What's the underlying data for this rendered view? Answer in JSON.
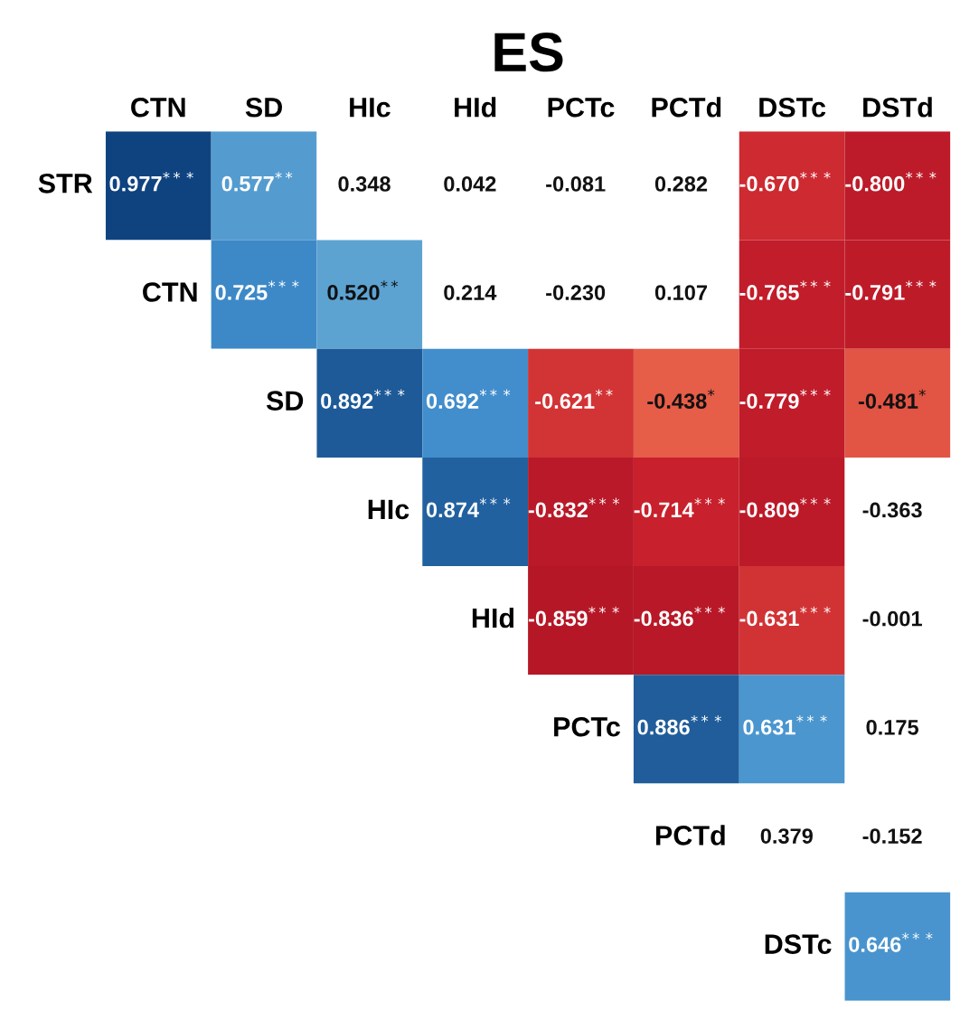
{
  "chart_data": {
    "type": "heatmap",
    "title": "ES",
    "categories": [
      "CTN",
      "SD",
      "HIc",
      "HId",
      "PCTc",
      "PCTd",
      "DSTc",
      "DSTd"
    ],
    "y_categories": [
      "STR",
      "CTN",
      "SD",
      "HIc",
      "HId",
      "PCTc",
      "PCTd",
      "DSTc"
    ],
    "cells": [
      [
        0.977,
        0.577,
        0.348,
        0.042,
        -0.081,
        0.282,
        -0.67,
        -0.8
      ],
      [
        null,
        0.725,
        0.52,
        0.214,
        -0.23,
        0.107,
        -0.765,
        -0.791
      ],
      [
        null,
        null,
        0.892,
        0.692,
        -0.621,
        -0.438,
        -0.779,
        -0.481
      ],
      [
        null,
        null,
        null,
        0.874,
        -0.832,
        -0.714,
        -0.809,
        -0.363
      ],
      [
        null,
        null,
        null,
        null,
        -0.859,
        -0.836,
        -0.631,
        -0.001
      ],
      [
        null,
        null,
        null,
        null,
        null,
        0.886,
        0.631,
        0.175
      ],
      [
        null,
        null,
        null,
        null,
        null,
        null,
        0.379,
        -0.152
      ],
      [
        null,
        null,
        null,
        null,
        null,
        null,
        null,
        0.646
      ]
    ],
    "cell_labels": [
      [
        "0.977$^{***}$",
        "0.577$^{**}$",
        "0.348",
        "0.042",
        "-0.081",
        "0.282",
        "-0.670$^{***}$",
        "-0.800$^{***}$"
      ],
      [
        null,
        "0.725$^{***}$",
        "0.520$^{**}$",
        "0.214",
        "-0.230",
        "0.107",
        "-0.765$^{***}$",
        "-0.791$^{***}$"
      ],
      [
        null,
        null,
        "0.892$^{***}$",
        "0.692$^{***}$",
        "-0.621$^{**}$",
        "-0.438$^{*}$",
        "-0.779$^{***}$",
        "-0.481$^{*}$"
      ],
      [
        null,
        null,
        null,
        "0.874$^{***}$",
        "-0.832$^{***}$",
        "-0.714$^{***}$",
        "-0.809$^{***}$",
        "-0.363"
      ],
      [
        null,
        null,
        null,
        null,
        "-0.859$^{***}$",
        "-0.836$^{***}$",
        "-0.631$^{***}$",
        "-0.001"
      ],
      [
        null,
        null,
        null,
        null,
        null,
        "0.886$^{***}$",
        "0.631$^{***}$",
        "0.175"
      ],
      [
        null,
        null,
        null,
        null,
        null,
        null,
        "0.379",
        "-0.152"
      ],
      [
        null,
        null,
        null,
        null,
        null,
        null,
        null,
        "0.646$^{***}$"
      ]
    ]
  }
}
